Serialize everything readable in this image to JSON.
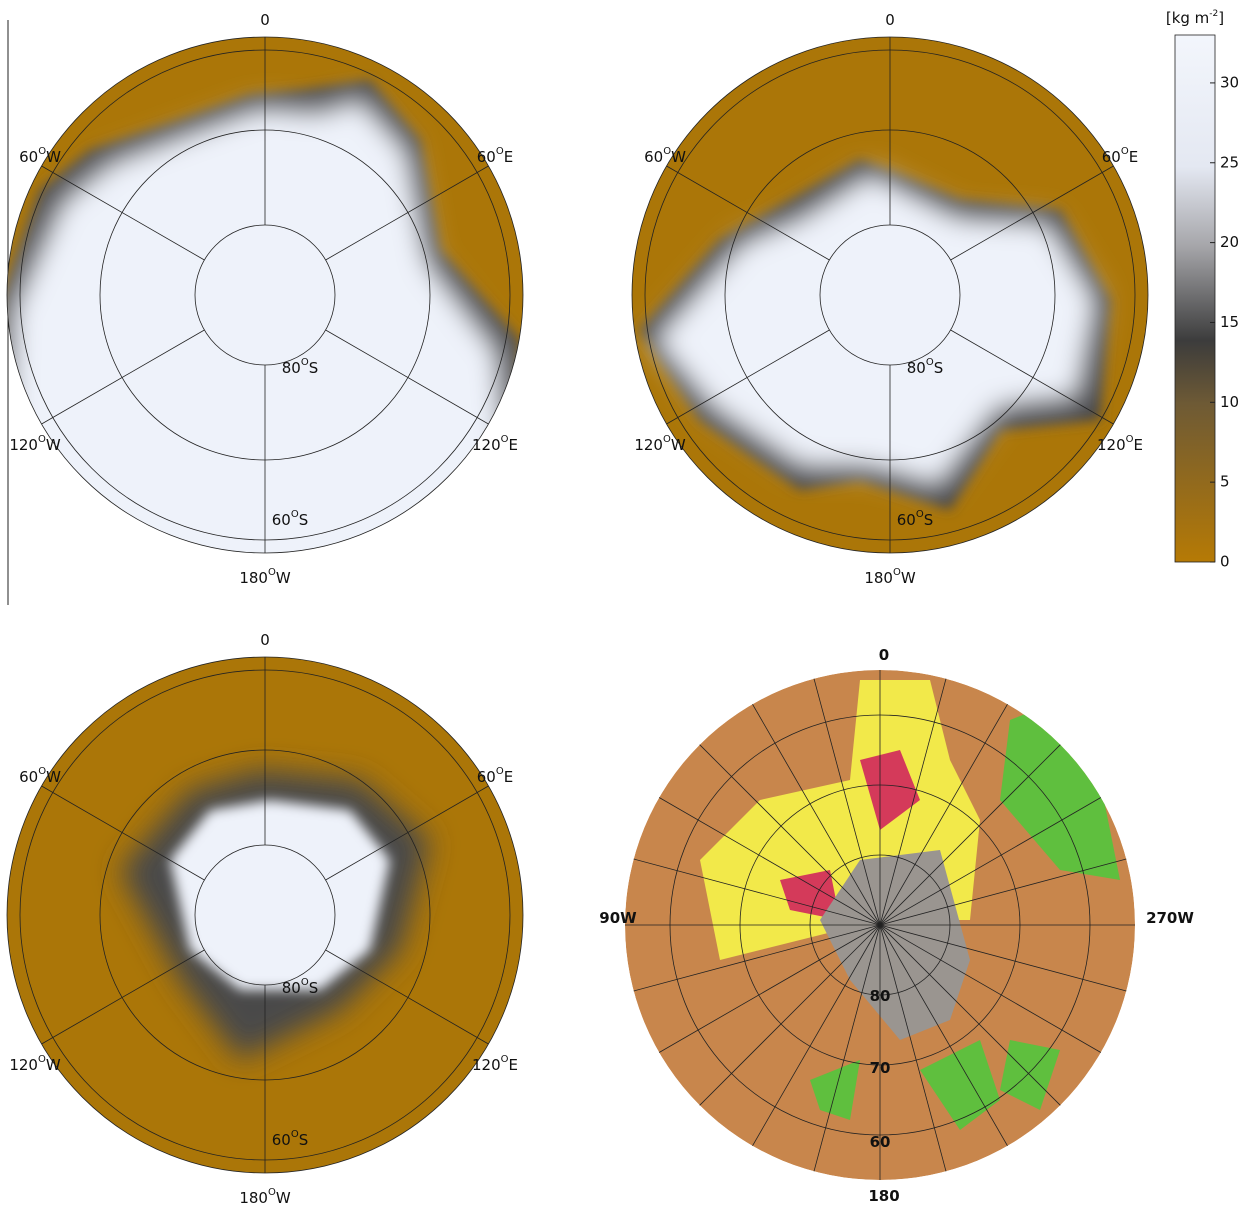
{
  "panels": [
    {
      "labels": [
        [
          "0"
        ],
        [
          "60",
          "O",
          "W"
        ],
        [
          "60",
          "O",
          "E"
        ],
        [
          "120",
          "O",
          "W"
        ],
        [
          "120",
          "O",
          "E"
        ],
        [
          "180",
          "O",
          "W"
        ],
        [
          "80",
          "O",
          "S"
        ],
        [
          "60",
          "O",
          "S"
        ]
      ]
    },
    {
      "labels": [
        [
          "0"
        ],
        [
          "60",
          "O",
          "W"
        ],
        [
          "60",
          "O",
          "E"
        ],
        [
          "120",
          "O",
          "W"
        ],
        [
          "120",
          "O",
          "E"
        ],
        [
          "180",
          "O",
          "W"
        ],
        [
          "80",
          "O",
          "S"
        ],
        [
          "60",
          "O",
          "S"
        ]
      ]
    },
    {
      "labels": [
        [
          "0"
        ],
        [
          "60",
          "O",
          "W"
        ],
        [
          "60",
          "O",
          "E"
        ],
        [
          "120",
          "O",
          "W"
        ],
        [
          "120",
          "O",
          "E"
        ],
        [
          "180",
          "O",
          "W"
        ],
        [
          "80",
          "O",
          "S"
        ],
        [
          "60",
          "O",
          "S"
        ]
      ]
    },
    {
      "labels": [
        [
          "0"
        ],
        [
          "90W"
        ],
        [
          "270W"
        ],
        [
          "180"
        ],
        [
          "80"
        ],
        [
          "70"
        ],
        [
          "60"
        ]
      ]
    }
  ],
  "colorbar": {
    "unit": [
      "[kg m",
      "-2",
      "]"
    ],
    "lim": [
      0,
      33
    ],
    "ticks": [
      0,
      5,
      10,
      15,
      20,
      25,
      30
    ]
  }
}
